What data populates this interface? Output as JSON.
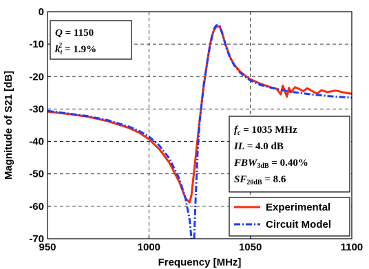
{
  "chart_data": {
    "type": "line",
    "xlabel": "Frequency [MHz]",
    "ylabel": "Magnitude of S21 [dB]",
    "xlim": [
      950,
      1100
    ],
    "ylim": [
      -70,
      0
    ],
    "xticks": [
      950,
      1000,
      1050,
      1100
    ],
    "yticks": [
      0,
      -10,
      -20,
      -30,
      -40,
      -50,
      -60,
      -70
    ],
    "grid": "dashed",
    "legend_position": "bottom-right",
    "series": [
      {
        "name": "Experimental",
        "color": "#ff2a0a",
        "style": "solid",
        "points": [
          [
            950,
            -30.8
          ],
          [
            960,
            -31.5
          ],
          [
            970,
            -32.4
          ],
          [
            980,
            -33.8
          ],
          [
            990,
            -35.8
          ],
          [
            995,
            -37.2
          ],
          [
            1000,
            -39.3
          ],
          [
            1005,
            -42.3
          ],
          [
            1010,
            -46.5
          ],
          [
            1015,
            -52.5
          ],
          [
            1018,
            -57.5
          ],
          [
            1020,
            -58.8
          ],
          [
            1021,
            -56.5
          ],
          [
            1023,
            -45
          ],
          [
            1025,
            -33.5
          ],
          [
            1027,
            -23
          ],
          [
            1029,
            -14.5
          ],
          [
            1030,
            -10.5
          ],
          [
            1031,
            -7.5
          ],
          [
            1032,
            -5.8
          ],
          [
            1033,
            -4.8
          ],
          [
            1034,
            -4.5
          ],
          [
            1035,
            -4.8
          ],
          [
            1036,
            -6.5
          ],
          [
            1038,
            -10.5
          ],
          [
            1040,
            -14
          ],
          [
            1042,
            -16.3
          ],
          [
            1045,
            -18.5
          ],
          [
            1048,
            -20
          ],
          [
            1050,
            -20.8
          ],
          [
            1055,
            -22.2
          ],
          [
            1060,
            -23.3
          ],
          [
            1063,
            -23.8
          ],
          [
            1065,
            -25.5
          ],
          [
            1066,
            -22.8
          ],
          [
            1067,
            -24.5
          ],
          [
            1068,
            -26.2
          ],
          [
            1069,
            -23.5
          ],
          [
            1070,
            -24.8
          ],
          [
            1072,
            -23.3
          ],
          [
            1074,
            -23.8
          ],
          [
            1076,
            -24.5
          ],
          [
            1078,
            -23.6
          ],
          [
            1080,
            -24.3
          ],
          [
            1083,
            -25.3
          ],
          [
            1085,
            -24.2
          ],
          [
            1088,
            -24.8
          ],
          [
            1092,
            -24.3
          ],
          [
            1096,
            -24.9
          ],
          [
            1100,
            -25.3
          ]
        ]
      },
      {
        "name": "Circuit Model",
        "color": "#1a3cff",
        "style": "dashdot",
        "points": [
          [
            950,
            -30.6
          ],
          [
            960,
            -31.4
          ],
          [
            970,
            -32.2
          ],
          [
            980,
            -33.5
          ],
          [
            990,
            -35.4
          ],
          [
            995,
            -36.7
          ],
          [
            1000,
            -38.5
          ],
          [
            1005,
            -41.2
          ],
          [
            1010,
            -45.2
          ],
          [
            1015,
            -51.5
          ],
          [
            1018,
            -57.5
          ],
          [
            1020,
            -64
          ],
          [
            1021,
            -70
          ],
          [
            1022.3,
            -70
          ],
          [
            1023,
            -58
          ],
          [
            1024,
            -43
          ],
          [
            1025,
            -34
          ],
          [
            1027,
            -22.5
          ],
          [
            1029,
            -14.5
          ],
          [
            1030,
            -11
          ],
          [
            1031,
            -8
          ],
          [
            1032,
            -5.5
          ],
          [
            1033,
            -4.3
          ],
          [
            1034,
            -4.0
          ],
          [
            1035,
            -4.5
          ],
          [
            1036,
            -6.3
          ],
          [
            1038,
            -10.8
          ],
          [
            1040,
            -14.2
          ],
          [
            1042,
            -16.5
          ],
          [
            1045,
            -18.8
          ],
          [
            1048,
            -20.3
          ],
          [
            1050,
            -21.2
          ],
          [
            1055,
            -22.6
          ],
          [
            1060,
            -23.4
          ],
          [
            1065,
            -24.1
          ],
          [
            1070,
            -24.7
          ],
          [
            1075,
            -25.1
          ],
          [
            1080,
            -25.5
          ],
          [
            1085,
            -25.8
          ],
          [
            1090,
            -26.1
          ],
          [
            1095,
            -26.3
          ],
          [
            1100,
            -26.5
          ]
        ]
      }
    ],
    "annotations": {
      "box1": [
        {
          "label": "Q",
          "label_sub": "",
          "label_sup": "",
          "value": " = 1150"
        },
        {
          "label": "k",
          "label_sub": "t",
          "label_sup": "2",
          "value": " = 1.9%"
        }
      ],
      "box2": [
        {
          "label": "f",
          "label_sub": "c",
          "value": " = 1035 MHz"
        },
        {
          "label": "IL",
          "label_sub": "",
          "value": " = 4.0 dB"
        },
        {
          "label": "FBW",
          "label_sub": "3dB",
          "value": " = 0.40%"
        },
        {
          "label": "SF",
          "label_sub": "20dB",
          "value": " = 8.6"
        }
      ]
    }
  }
}
